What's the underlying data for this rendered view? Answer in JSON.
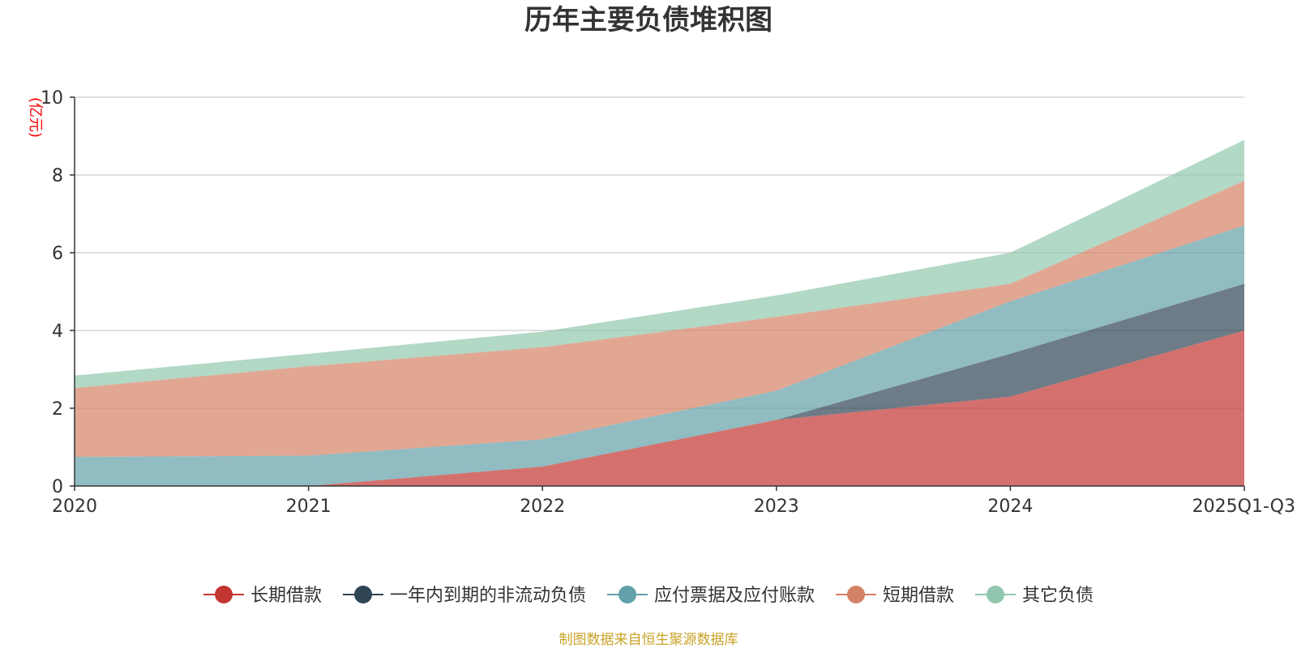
{
  "chart_data": {
    "type": "area",
    "stacked": true,
    "title": "历年主要负债堆积图",
    "unit_label": "(亿元)",
    "categories": [
      "2020",
      "2021",
      "2022",
      "2023",
      "2024",
      "2025Q1-Q3"
    ],
    "ylim": [
      0,
      10
    ],
    "yticks": [
      "0",
      "2",
      "4",
      "6",
      "8",
      "10"
    ],
    "grid": true,
    "legend_position": "bottom",
    "series": [
      {
        "name": "长期借款",
        "values": [
          0,
          0,
          0.5,
          1.7,
          2.3,
          4.0
        ],
        "color": "#c23531"
      },
      {
        "name": "一年内到期的非流动负债",
        "values": [
          0,
          0,
          0,
          0,
          1.1,
          1.2
        ],
        "color": "#2f4554"
      },
      {
        "name": "应付票据及应付账款",
        "values": [
          0.75,
          0.78,
          0.7,
          0.75,
          1.35,
          1.5
        ],
        "color": "#61a0a8"
      },
      {
        "name": "短期借款",
        "values": [
          1.77,
          2.3,
          2.37,
          1.9,
          0.45,
          1.15
        ],
        "color": "#d48265"
      },
      {
        "name": "其它负债",
        "values": [
          0.32,
          0.32,
          0.4,
          0.55,
          0.8,
          1.05
        ],
        "color": "#91c7ae"
      }
    ]
  },
  "source_note": "制图数据来自恒生聚源数据库"
}
